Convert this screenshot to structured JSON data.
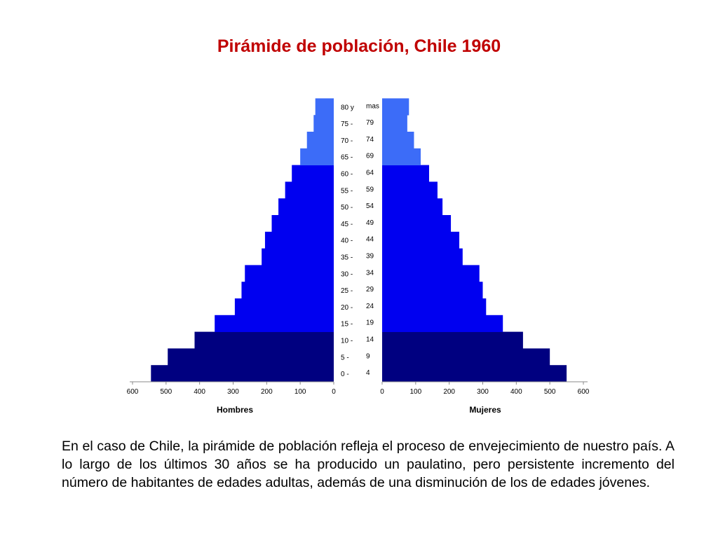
{
  "slide": {
    "title": "Pirámide de población, Chile 1960",
    "paragraph": "En el caso de Chile, la pirámide de población refleja el proceso de envejecimiento de nuestro país. A lo largo de los últimos 30 años se ha producido un paulatino, pero persistente incremento del número de habitantes de edades adultas, además de una disminución de los de edades jóvenes."
  },
  "chart_data": {
    "type": "bar",
    "orientation": "horizontal-population-pyramid",
    "age_groups": [
      "0-4",
      "5-9",
      "10-14",
      "15-19",
      "20-24",
      "25-29",
      "30-34",
      "35-39",
      "40-44",
      "45-49",
      "50-54",
      "55-59",
      "60-64",
      "65-69",
      "70-74",
      "75-79",
      "80 y mas"
    ],
    "age_labels_left": [
      "0 -",
      "5 -",
      "10 -",
      "15 -",
      "20 -",
      "25 -",
      "30 -",
      "35 -",
      "40 -",
      "45 -",
      "50 -",
      "55 -",
      "60 -",
      "65 -",
      "70 -",
      "75 -",
      "80 y"
    ],
    "age_labels_right": [
      "4",
      "9",
      "14",
      "19",
      "24",
      "29",
      "34",
      "39",
      "44",
      "49",
      "54",
      "59",
      "64",
      "69",
      "74",
      "79",
      "mas"
    ],
    "series": [
      {
        "name": "Hombres",
        "values": [
          545,
          495,
          415,
          355,
          295,
          275,
          265,
          215,
          205,
          185,
          165,
          145,
          125,
          100,
          80,
          60,
          55
        ]
      },
      {
        "name": "Mujeres",
        "values": [
          550,
          500,
          420,
          360,
          310,
          300,
          290,
          240,
          230,
          205,
          180,
          165,
          140,
          115,
          95,
          75,
          80
        ]
      }
    ],
    "colors": {
      "ages_0_14": "#000080",
      "ages_15_64": "#0000f0",
      "ages_65_plus": "#3c6cf8"
    },
    "xlim": [
      0,
      600
    ],
    "xticks": [
      0,
      100,
      200,
      300,
      400,
      500,
      600
    ],
    "xlabel_left": "Hombres",
    "xlabel_right": "Mujeres",
    "grid": false
  }
}
